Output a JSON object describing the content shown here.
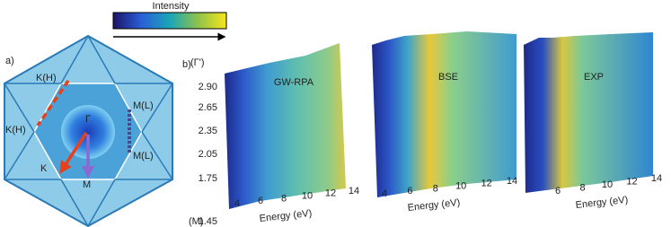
{
  "colorbar": {
    "label": "Intensity"
  },
  "panel_a": {
    "label": "a)",
    "points": [
      "K(H)",
      "K(H)",
      "M(L)",
      "M(L)",
      "Γ",
      "K",
      "M"
    ]
  },
  "panel_b": {
    "label": "b)",
    "y_axis": {
      "top_label": "(Γ')",
      "bottom_label": "(M)",
      "ticks": [
        "2.90",
        "2.65",
        "2.35",
        "2.05",
        "1.75",
        "1.45"
      ]
    },
    "plots": [
      {
        "title": "GW-RPA",
        "x_label": "Energy (eV)",
        "x_ticks": [
          "4",
          "6",
          "8",
          "10",
          "12",
          "14"
        ]
      },
      {
        "title": "BSE",
        "x_label": "Energy (eV)",
        "x_ticks": [
          "4",
          "6",
          "8",
          "10",
          "12",
          "14"
        ]
      },
      {
        "title": "EXP",
        "x_label": "Energy (eV)",
        "x_ticks": [
          "6",
          "8",
          "10",
          "12",
          "14"
        ]
      }
    ]
  }
}
